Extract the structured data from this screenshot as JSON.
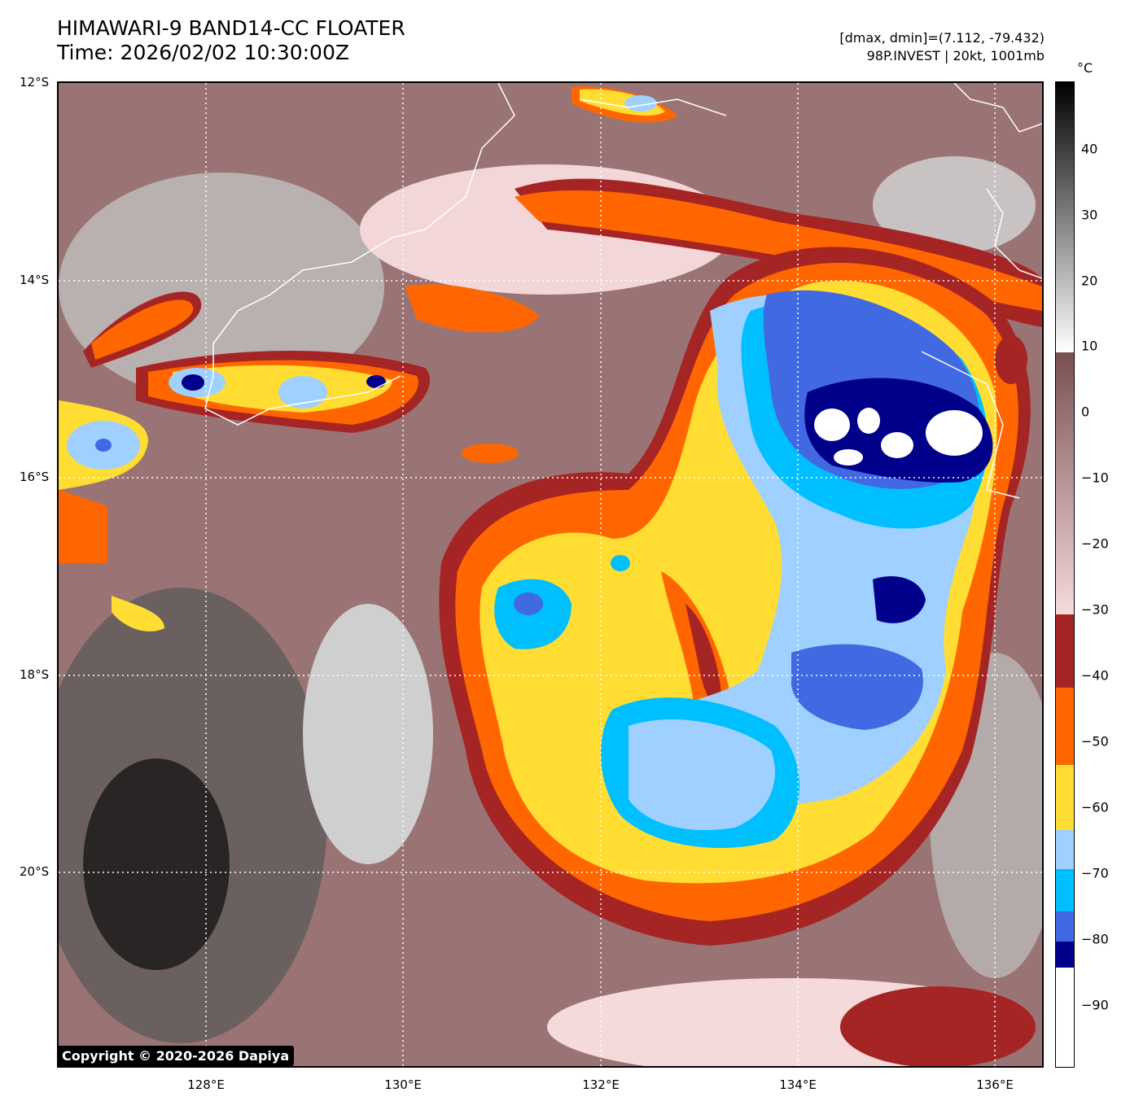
{
  "header": {
    "title_line1": "HIMAWARI-9 BAND14-CC FLOATER",
    "title_line2": "Time: 2026/02/02 10:30:00Z",
    "meta_line1": "[dmax, dmin]=(7.112, -79.432)",
    "meta_line2": "98P.INVEST | 20kt, 1001mb"
  },
  "map": {
    "lat_labels": [
      "12°S",
      "14°S",
      "16°S",
      "18°S",
      "20°S"
    ],
    "lon_labels": [
      "128°E",
      "130°E",
      "132°E",
      "134°E",
      "136°E"
    ],
    "lat_range": [
      -22,
      -12
    ],
    "lon_range": [
      126.5,
      136.5
    ],
    "gridlines": "dotted white"
  },
  "colorbar": {
    "unit": "°C",
    "ticks": [
      "40",
      "30",
      "20",
      "10",
      "0",
      "−10",
      "−20",
      "−30",
      "−40",
      "−50",
      "−60",
      "−70",
      "−80",
      "−90"
    ],
    "range": [
      -100,
      50
    ],
    "colors": {
      "warm_black": "#000000",
      "warm_white": "#ffffff",
      "brown": "#7a5050",
      "pink": "#f5dadc",
      "dark_red": "#a52525",
      "orange": "#ff6600",
      "yellow": "#ffdd33",
      "light_blue": "#a0d0ff",
      "cyan": "#00bfff",
      "royal_blue": "#4169e1",
      "navy": "#00008b",
      "white": "#ffffff"
    }
  },
  "copyright": "Copyright © 2020-2026 Dapiya"
}
